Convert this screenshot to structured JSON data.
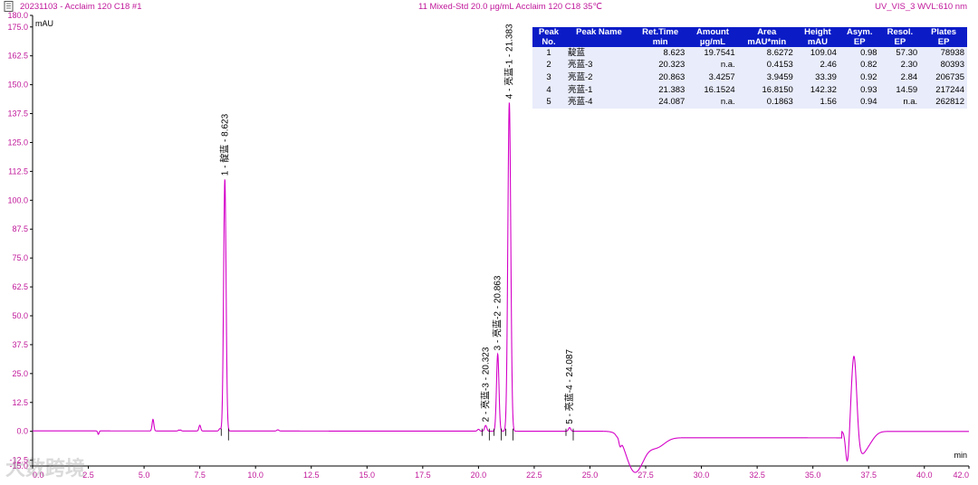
{
  "header": {
    "left": "20231103 - Acclaim 120 C18 #1",
    "middle": "11 Mixed-Std 20.0 µg/mL Acclaim 120 C18 35℃",
    "right": "UV_VIS_3 WVL:610 nm"
  },
  "watermark": "大数跨境",
  "colors": {
    "trace": "#d400c8",
    "axis_text": "#c0189a",
    "table_header": "#0b1cc7"
  },
  "chart_data": {
    "type": "line",
    "ylabel": "mAU",
    "xlabel": "min",
    "xlim": [
      0,
      42
    ],
    "ylim": [
      -15,
      180
    ],
    "x_ticks": [
      "0.0",
      "2.5",
      "5.0",
      "7.5",
      "10.0",
      "12.5",
      "15.0",
      "17.5",
      "20.0",
      "22.5",
      "25.0",
      "27.5",
      "30.0",
      "32.5",
      "35.0",
      "37.5",
      "40.0",
      "42.0"
    ],
    "y_ticks": [
      "180.0",
      "175.0",
      "162.5",
      "150.0",
      "137.5",
      "125.0",
      "112.5",
      "100.0",
      "87.5",
      "75.0",
      "62.5",
      "50.0",
      "37.5",
      "25.0",
      "12.5",
      "0.0",
      "-12.5",
      "-15.0"
    ],
    "peaks": [
      {
        "no": 1,
        "name": "靛蓝",
        "rt": 8.623,
        "height": 109.04,
        "label": "1 - 靛蓝 - 8.623"
      },
      {
        "no": 2,
        "name": "亮蓝-3",
        "rt": 20.323,
        "height": 2.46,
        "label": "2 - 亮蓝-3 - 20.323"
      },
      {
        "no": 3,
        "name": "亮蓝-2",
        "rt": 20.863,
        "height": 33.39,
        "label": "3 - 亮蓝-2 - 20.863"
      },
      {
        "no": 4,
        "name": "亮蓝-1",
        "rt": 21.383,
        "height": 142.32,
        "label": "4 - 亮蓝-1 - 21.383"
      },
      {
        "no": 5,
        "name": "亮蓝-4",
        "rt": 24.087,
        "height": 1.56,
        "label": "5 - 亮蓝-4 - 24.087"
      }
    ]
  },
  "peak_table": {
    "headers": [
      [
        "Peak",
        "No."
      ],
      [
        "Peak Name",
        ""
      ],
      [
        "Ret.Time",
        "min"
      ],
      [
        "Amount",
        "µg/mL"
      ],
      [
        "Area",
        "mAU*min"
      ],
      [
        "Height",
        "mAU"
      ],
      [
        "Asym.",
        "EP"
      ],
      [
        "Resol.",
        "EP"
      ],
      [
        "Plates",
        "EP"
      ]
    ],
    "rows": [
      [
        "1",
        "靛蓝",
        "8.623",
        "19.7541",
        "8.6272",
        "109.04",
        "0.98",
        "57.30",
        "78938"
      ],
      [
        "2",
        "亮蓝-3",
        "20.323",
        "n.a.",
        "0.4153",
        "2.46",
        "0.82",
        "2.30",
        "80393"
      ],
      [
        "3",
        "亮蓝-2",
        "20.863",
        "3.4257",
        "3.9459",
        "33.39",
        "0.92",
        "2.84",
        "206735"
      ],
      [
        "4",
        "亮蓝-1",
        "21.383",
        "16.1524",
        "16.8150",
        "142.32",
        "0.93",
        "14.59",
        "217244"
      ],
      [
        "5",
        "亮蓝-4",
        "24.087",
        "n.a.",
        "0.1863",
        "1.56",
        "0.94",
        "n.a.",
        "262812"
      ]
    ]
  }
}
